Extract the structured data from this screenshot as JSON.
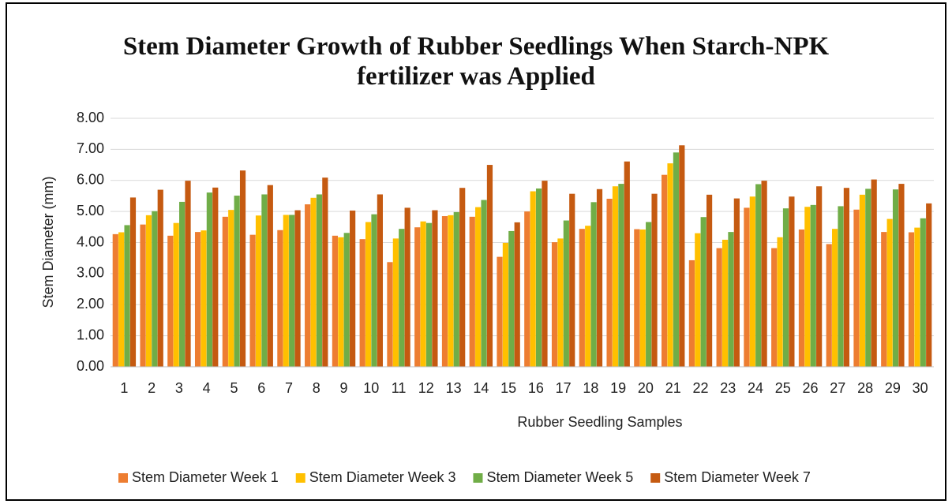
{
  "chart_data": {
    "type": "bar",
    "title": "Stem Diameter Growth of Rubber Seedlings When Starch-NPK fertilizer was Applied",
    "x_label": "Rubber Seedling Samples",
    "y_label": "Stem Diameter (mm)",
    "categories": [
      "1",
      "2",
      "3",
      "4",
      "5",
      "6",
      "7",
      "8",
      "9",
      "10",
      "11",
      "12",
      "13",
      "14",
      "15",
      "16",
      "17",
      "18",
      "19",
      "20",
      "21",
      "22",
      "23",
      "24",
      "25",
      "26",
      "27",
      "28",
      "29",
      "30"
    ],
    "series": [
      {
        "name": "Stem Diameter Week 1",
        "color": "#ED7D31",
        "values": [
          4.27,
          4.58,
          4.22,
          4.34,
          4.83,
          4.25,
          4.4,
          5.23,
          4.22,
          4.11,
          3.37,
          4.49,
          4.85,
          4.83,
          3.54,
          5.0,
          4.01,
          4.44,
          5.41,
          4.43,
          6.18,
          3.43,
          3.82,
          5.12,
          3.82,
          4.42,
          3.95,
          5.06,
          4.34,
          4.33
        ]
      },
      {
        "name": "Stem Diameter Week 3",
        "color": "#FFC000",
        "values": [
          4.33,
          4.88,
          4.63,
          4.39,
          5.05,
          4.87,
          4.89,
          5.44,
          4.17,
          4.66,
          4.13,
          4.68,
          4.88,
          5.14,
          3.99,
          5.65,
          4.13,
          4.54,
          5.81,
          4.42,
          6.55,
          4.3,
          4.09,
          5.48,
          4.17,
          5.15,
          4.44,
          5.54,
          4.76,
          4.48
        ]
      },
      {
        "name": "Stem Diameter Week 5",
        "color": "#70AD47",
        "values": [
          4.56,
          5.01,
          5.31,
          5.61,
          5.51,
          5.55,
          4.89,
          5.55,
          4.31,
          4.91,
          4.44,
          4.63,
          4.98,
          5.37,
          4.37,
          5.74,
          4.71,
          5.3,
          5.89,
          4.66,
          6.9,
          4.82,
          4.34,
          5.88,
          5.1,
          5.21,
          5.17,
          5.73,
          5.71,
          4.78
        ]
      },
      {
        "name": "Stem Diameter Week 7",
        "color": "#C55A11",
        "values": [
          5.45,
          5.7,
          5.99,
          5.77,
          6.32,
          5.85,
          5.04,
          6.09,
          5.03,
          5.55,
          5.12,
          5.04,
          5.76,
          6.5,
          4.65,
          5.99,
          5.57,
          5.72,
          6.61,
          5.57,
          7.13,
          5.54,
          5.42,
          5.99,
          5.48,
          5.81,
          5.76,
          6.03,
          5.89,
          5.26
        ]
      }
    ],
    "ylim": [
      0,
      8
    ],
    "yticks": [
      {
        "value": 0,
        "label": "0.00"
      },
      {
        "value": 1,
        "label": "1.00"
      },
      {
        "value": 2,
        "label": "2.00"
      },
      {
        "value": 3,
        "label": "3.00"
      },
      {
        "value": 4,
        "label": "4.00"
      },
      {
        "value": 5,
        "label": "5.00"
      },
      {
        "value": 6,
        "label": "6.00"
      },
      {
        "value": 7,
        "label": "7.00"
      },
      {
        "value": 8,
        "label": "8.00"
      }
    ],
    "grid": true,
    "legend": "bottom"
  }
}
